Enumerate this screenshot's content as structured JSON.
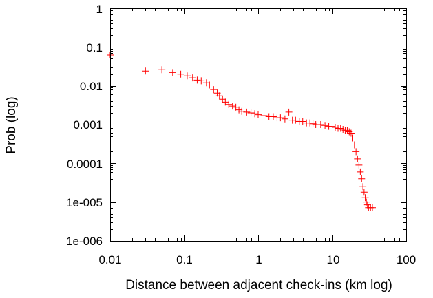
{
  "chart_data": {
    "type": "scatter",
    "title": "",
    "xlabel": "Distance between adjacent check-ins (km log)",
    "ylabel": "Prob (log)",
    "xscale": "log",
    "yscale": "log",
    "xlim": [
      0.01,
      100
    ],
    "ylim": [
      1e-06,
      1
    ],
    "grid": false,
    "legend": "none",
    "marker": "plus",
    "color": "#ff0000",
    "x_tick_labels": [
      "0.01",
      "0.1",
      "1",
      "10",
      "100"
    ],
    "y_tick_labels": [
      "1e-006",
      "1e-005",
      "0.0001",
      "0.001",
      "0.01",
      "0.1",
      "1"
    ],
    "series": [
      {
        "points": [
          [
            0.01,
            0.062
          ],
          [
            0.03,
            0.024
          ],
          [
            0.05,
            0.026
          ],
          [
            0.07,
            0.022
          ],
          [
            0.09,
            0.02
          ],
          [
            0.11,
            0.018
          ],
          [
            0.13,
            0.016
          ],
          [
            0.15,
            0.014
          ],
          [
            0.17,
            0.0135
          ],
          [
            0.2,
            0.012
          ],
          [
            0.22,
            0.0105
          ],
          [
            0.25,
            0.008
          ],
          [
            0.28,
            0.0065
          ],
          [
            0.3,
            0.0055
          ],
          [
            0.33,
            0.0045
          ],
          [
            0.36,
            0.0038
          ],
          [
            0.4,
            0.0033
          ],
          [
            0.45,
            0.003
          ],
          [
            0.5,
            0.0028
          ],
          [
            0.55,
            0.0024
          ],
          [
            0.6,
            0.0022
          ],
          [
            0.7,
            0.0021
          ],
          [
            0.8,
            0.002
          ],
          [
            0.9,
            0.0019
          ],
          [
            1.0,
            0.0018
          ],
          [
            1.2,
            0.0017
          ],
          [
            1.4,
            0.0016
          ],
          [
            1.6,
            0.0016
          ],
          [
            1.8,
            0.0015
          ],
          [
            2.0,
            0.0015
          ],
          [
            2.3,
            0.0014
          ],
          [
            2.6,
            0.0021
          ],
          [
            2.9,
            0.0013
          ],
          [
            3.2,
            0.0013
          ],
          [
            3.6,
            0.0012
          ],
          [
            4.0,
            0.0012
          ],
          [
            4.5,
            0.0011
          ],
          [
            5.0,
            0.0011
          ],
          [
            5.5,
            0.00105
          ],
          [
            6.0,
            0.001
          ],
          [
            7.0,
            0.001
          ],
          [
            8.0,
            0.00095
          ],
          [
            9.0,
            0.0009
          ],
          [
            10.0,
            0.0009
          ],
          [
            11.0,
            0.00085
          ],
          [
            12.0,
            0.0008
          ],
          [
            13.0,
            0.0008
          ],
          [
            14.0,
            0.00075
          ],
          [
            15.0,
            0.0007
          ],
          [
            16.0,
            0.0007
          ],
          [
            17.0,
            0.00065
          ],
          [
            18.0,
            0.0006
          ],
          [
            19.0,
            0.00045
          ],
          [
            20.0,
            0.0003
          ],
          [
            21.0,
            0.0002
          ],
          [
            22.0,
            0.00013
          ],
          [
            23.0,
            9e-05
          ],
          [
            24.0,
            6e-05
          ],
          [
            25.0,
            4e-05
          ],
          [
            26.0,
            2.5e-05
          ],
          [
            27.0,
            1.8e-05
          ],
          [
            28.0,
            1.3e-05
          ],
          [
            29.0,
            1e-05
          ],
          [
            30.0,
            8.5e-06
          ],
          [
            31.0,
            7.2e-06
          ],
          [
            33.0,
            7.2e-06
          ],
          [
            35.0,
            7.2e-06
          ]
        ]
      }
    ]
  }
}
